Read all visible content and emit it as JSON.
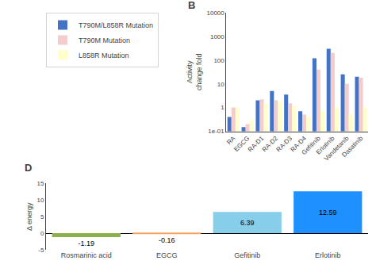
{
  "chart_data": [
    {
      "type": "bar",
      "annotations": [
        {
          "text": "B"
        }
      ],
      "categories": [
        "RA",
        "EGCG",
        "RA-D1",
        "RA-D2",
        "RA-D3",
        "RA-D4",
        "Gefitinib",
        "Erlotinib",
        "Vandetanib",
        "Dasatinib"
      ],
      "series": [
        {
          "name": "T790M/L858R Mutation",
          "color": "#4472C4",
          "values": [
            0.4,
            0.15,
            2.0,
            5.0,
            3.5,
            0.7,
            120.0,
            300.0,
            25.0,
            20.0
          ]
        },
        {
          "name": "T790M Mutation",
          "color": "#F4CCCC",
          "values": [
            1.0,
            0.2,
            2.2,
            2.0,
            1.5,
            0.5,
            40.0,
            200.0,
            10.0,
            18.0
          ]
        },
        {
          "name": "L858R Mutation",
          "color": "#FFFFCC",
          "values": [
            1.0,
            0.3,
            1.5,
            1.8,
            1.2,
            0.4,
            0.7,
            1.0,
            0.5,
            1.0
          ]
        }
      ],
      "ylabel": "Activity\nchange fold",
      "log": "y",
      "ylim": [
        0.1,
        10000
      ],
      "yticks": [
        {
          "value": 0.1,
          "label": "1e-01"
        },
        1,
        10,
        100,
        1000,
        10000
      ],
      "legend": "upper left",
      "grid": false
    },
    {
      "type": "bar",
      "annotations": [
        {
          "text": "D"
        }
      ],
      "categories": [
        "Rosmarinic acid",
        "EGCG",
        "Gefitinib",
        "Erlotinib"
      ],
      "values": [
        -1.19,
        -0.16,
        6.39,
        12.59
      ],
      "colors": [
        "#8DB04E",
        "#F4A460",
        "#87CEEB",
        "#1E90FF"
      ],
      "ylabel": "Δ energy",
      "ylim": [
        -5,
        15
      ],
      "yticks": [
        -5,
        0,
        5,
        10,
        15
      ],
      "data_labels": true,
      "grid": false
    }
  ]
}
